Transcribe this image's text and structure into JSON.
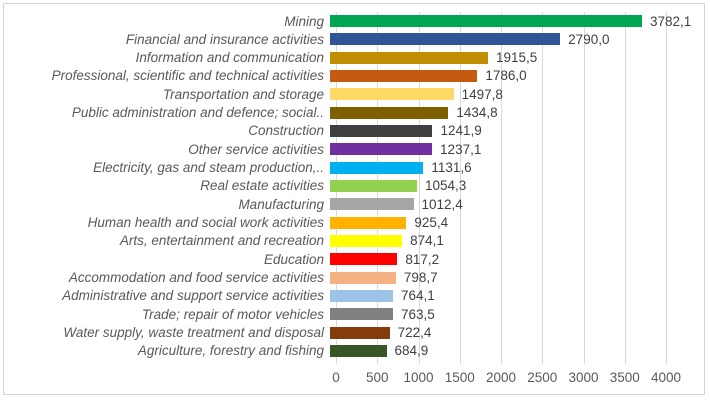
{
  "chart_data": {
    "type": "bar",
    "orientation": "horizontal",
    "title": "",
    "xlabel": "",
    "ylabel": "",
    "xlim": [
      0,
      4000
    ],
    "grid": true,
    "legend": "none",
    "categories": [
      "Mining",
      "Financial and insurance activities",
      "Information and communication",
      "Professional, scientific and technical activities",
      "Transportation and storage",
      "Public administration and defence; social..",
      "Construction",
      "Other service activities",
      "Electricity, gas and steam production,..",
      "Real estate activities",
      "Manufacturing",
      "Human health and social work activities",
      "Arts, entertainment and recreation",
      "Education",
      "Accommodation and food service activities",
      "Administrative and support service activities",
      "Trade; repair of motor vehicles",
      "Water supply, waste treatment and disposal",
      "Agriculture, forestry and fishing"
    ],
    "values": [
      3782.1,
      2790.0,
      1915.5,
      1786.0,
      1497.8,
      1434.8,
      1241.9,
      1237.1,
      1131.6,
      1054.3,
      1012.4,
      925.4,
      874.1,
      817.2,
      798.7,
      764.1,
      763.5,
      722.4,
      684.9
    ],
    "value_labels": [
      "3782,1",
      "2790,0",
      "1915,5",
      "1786,0",
      "1497,8",
      "1434,8",
      "1241,9",
      "1237,1",
      "1131,6",
      "1054,3",
      "1012,4",
      "925,4",
      "874,1",
      "817,2",
      "798,7",
      "764,1",
      "763,5",
      "722,4",
      "684,9"
    ],
    "bar_colors": [
      "#00A651",
      "#2F5597",
      "#BF8F00",
      "#C55A11",
      "#FFD966",
      "#7F6000",
      "#404040",
      "#7030A0",
      "#00B0F0",
      "#92D050",
      "#A6A6A6",
      "#FFB300",
      "#FFFF00",
      "#FF0000",
      "#F4B183",
      "#9DC3E6",
      "#808080",
      "#843C0C",
      "#375623"
    ],
    "x_ticks": [
      "0",
      "500",
      "1000",
      "1500",
      "2000",
      "2500",
      "3000",
      "3500",
      "4000"
    ],
    "colors": {
      "category_label": "#595959",
      "value_label": "#404040",
      "axis_label": "#595959",
      "gridline": "#d9d9d9",
      "frame_border": "#d3d3d3",
      "background": "#ffffff"
    }
  }
}
